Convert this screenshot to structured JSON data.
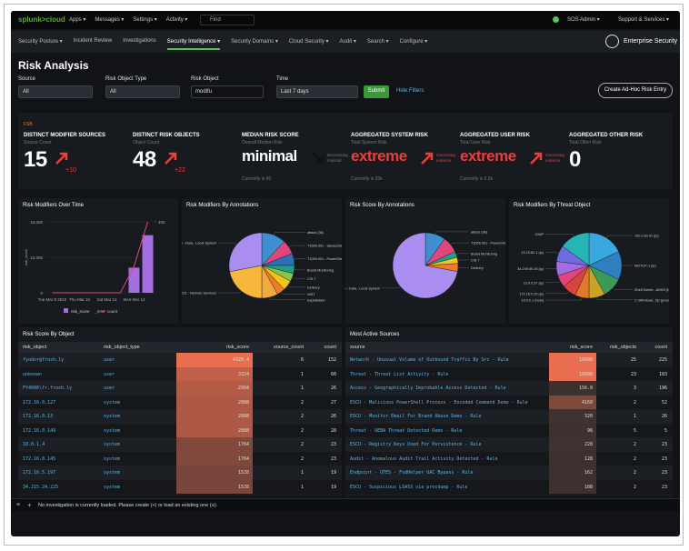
{
  "topbar": {
    "logo": "splunk>cloud",
    "menus": [
      "Apps ▾",
      "Messages ▾",
      "Settings ▾",
      "Activity ▾"
    ],
    "find": "Find",
    "user": "SOS Admin ▾",
    "support": "Support & Services ▾"
  },
  "nav": {
    "items": [
      "Security Posture ▾",
      "Incident Review",
      "Investigations",
      "Security Intelligence ▾",
      "Security Domains ▾",
      "Cloud Security ▾",
      "Audit ▾",
      "Search ▾",
      "Configure ▾"
    ],
    "active": 3,
    "app": "Enterprise Security"
  },
  "page": {
    "title": "Risk Analysis",
    "submit": "Submit",
    "hide_filters": "Hide Filters",
    "create": "Create Ad-Hoc Risk Entry"
  },
  "filters": [
    {
      "label": "Source",
      "value": "All"
    },
    {
      "label": "Risk Object Type",
      "value": "All"
    },
    {
      "label": "Risk Object",
      "value": "modifu"
    },
    {
      "label": "Time",
      "value": "Last 7 days"
    }
  ],
  "kpis": {
    "tag": "FSB",
    "items": [
      {
        "title": "DISTINCT MODIFIER SOURCES",
        "subtitle": "Source Count",
        "value": 15,
        "color": "#ffffff",
        "delta": "+10",
        "arrow": "up",
        "arrow_color": "#e8403a"
      },
      {
        "title": "DISTINCT RISK OBJECTS",
        "subtitle": "Object Count",
        "value": 48,
        "color": "#ffffff",
        "delta": "+22",
        "arrow": "up",
        "arrow_color": "#e8403a"
      },
      {
        "title": "MEDIAN RISK SCORE",
        "subtitle": "Overall Median Risk",
        "value": "minimal",
        "color": "#ffffff",
        "trend": "Decreasing minimal",
        "arrow": "down",
        "arrow_color": "#111111",
        "note": "Currently is 90"
      },
      {
        "title": "AGGREGATED SYSTEM RISK",
        "subtitle": "Total System Risk",
        "value": "extreme",
        "color": "#e8403a",
        "trend": "Increasing extreme",
        "arrow": "up",
        "arrow_color": "#e8403a",
        "note": "Currently is 20k"
      },
      {
        "title": "AGGREGATED USER RISK",
        "subtitle": "Total User Risk",
        "value": "extreme",
        "color": "#e8403a",
        "trend": "Increasing extreme",
        "arrow": "up",
        "arrow_color": "#e8403a",
        "note": "Currently is 6.5k"
      },
      {
        "title": "AGGREGATED OTHER RISK",
        "subtitle": "Total Other Risk",
        "value": 0,
        "color": "#ffffff"
      }
    ]
  },
  "over_time": {
    "title": "Risk Modifiers Over Time",
    "type": "bar",
    "categories": [
      "Tue Mar 8 2022",
      null,
      "Thu Mar 10",
      null,
      "Sat Mar 12",
      null,
      "Mon Mar 14",
      null
    ],
    "series": [
      {
        "name": "risk_score",
        "color": "#a46ee0",
        "values": [
          0,
          0,
          0,
          0,
          0,
          0,
          8500,
          19500
        ]
      },
      {
        "name": "count",
        "color": "#e0457b",
        "axis": "y2",
        "values": [
          0,
          0,
          0,
          0,
          0,
          0,
          150,
          400
        ]
      }
    ],
    "x_label": "_time",
    "y_label": "risk_score",
    "ylim": [
      0,
      24000
    ],
    "yticks": [
      0,
      {
        "value": 12000,
        "label": "12,000"
      },
      {
        "value": 24000,
        "label": "24,000"
      }
    ],
    "y2lim": [
      0,
      400
    ],
    "y2ticks": [
      400
    ]
  },
  "pies": [
    {
      "title": "Risk Modifiers By Annotations",
      "slices": [
        {
          "label": "attack (38)",
          "value": 12,
          "color": "#3e8ed0"
        },
        {
          "label": "T1566.001 - Spearphishing Link",
          "value": 7,
          "color": "#e0457b"
        },
        {
          "label": "T1059.001 - PowerShell",
          "value": 6,
          "color": "#2f6db5"
        },
        {
          "label": "Brand Monitoring",
          "value": 4,
          "color": "#1f9e89"
        },
        {
          "label": "CIS 7",
          "value": 4,
          "color": "#8bc34a"
        },
        {
          "label": "Delivery",
          "value": 5,
          "color": "#f0c419"
        },
        {
          "label": "NIST",
          "value": 4,
          "color": "#ef7b2a"
        },
        {
          "label": "Exploitation",
          "value": 8,
          "color": "#f2a93b"
        },
        {
          "label": "T1021 - Remote Services",
          "value": 22,
          "color": "#f6b73c"
        },
        {
          "label": "T1005 - Data...Local System",
          "value": 28,
          "color": "#a98df0"
        }
      ]
    },
    {
      "title": "Risk Score By Annotations",
      "slices": [
        {
          "label": "attack (38)",
          "value": 10,
          "color": "#3e8ed0"
        },
        {
          "label": "T1059.001 - PowerShell",
          "value": 8,
          "color": "#e0457b"
        },
        {
          "label": "Brand Monitoring",
          "value": 3,
          "color": "#1f9e89"
        },
        {
          "label": "CIS 7",
          "value": 3,
          "color": "#f0c419"
        },
        {
          "label": "Delivery",
          "value": 4,
          "color": "#ef7b2a"
        },
        {
          "label": "T1005 - Data...Local System",
          "value": 72,
          "color": "#a98df0"
        }
      ]
    },
    {
      "title": "Risk Modifiers By Threat Object",
      "slices": [
        {
          "label": "192.0.83.41 (ip)",
          "value": 18,
          "color": "#3aa8e0"
        },
        {
          "label": "MOTCP-1 (ip)",
          "value": 14,
          "color": "#2f7fc1"
        },
        {
          "label": "Shell Delete...ANSS (hash)",
          "value": 10,
          "color": "#3b9a57"
        },
        {
          "label": "C:\\Windows...ftp (process)",
          "value": 8,
          "color": "#c9a227"
        },
        {
          "label": "10.0.0.1 (host)",
          "value": 7,
          "color": "#e07a2a"
        },
        {
          "label": "172.16.0.20 (ip)",
          "value": 7,
          "color": "#d9453d"
        },
        {
          "label": "10.0.0.37 (ip)",
          "value": 6,
          "color": "#e0457b"
        },
        {
          "label": "34.209.65.25 (ip)",
          "value": 7,
          "color": "#a46ee0"
        },
        {
          "label": "10.19.82.1 (ip)",
          "value": 8,
          "color": "#6f6ae0"
        },
        {
          "label": "ICMP",
          "value": 15,
          "color": "#26b5b5"
        }
      ]
    }
  ],
  "risk_by_object": {
    "title": "Risk Score By Object",
    "columns": [
      "risk_object",
      "risk_object_type",
      "risk_score",
      "source_count",
      "count"
    ],
    "rows": [
      [
        "fyodor@frosh.ly",
        "user",
        4320.4,
        6,
        152
      ],
      [
        "unknown",
        "user",
        3324,
        1,
        60
      ],
      [
        "FY4006\\fr.frosh.ly",
        "user",
        2984,
        1,
        26
      ],
      [
        "172.16.0.127",
        "system",
        2888,
        2,
        27
      ],
      [
        "172.16.0.13",
        "system",
        2888,
        2,
        26
      ],
      [
        "172.16.0.149",
        "system",
        2888,
        2,
        28
      ],
      [
        "10.0.1.4",
        "system",
        1764,
        2,
        23
      ],
      [
        "172.16.0.145",
        "system",
        1764,
        2,
        23
      ],
      [
        "172.16.5.197",
        "system",
        1528,
        1,
        19
      ],
      [
        "34.215.24.225",
        "system",
        1528,
        1,
        19
      ]
    ]
  },
  "active_sources": {
    "title": "Most Active Sources",
    "columns": [
      "source",
      "risk_score",
      "risk_objects",
      "count"
    ],
    "rows": [
      [
        "Network - Unusual Volume of Outbound Traffic By Src - Rule",
        10680,
        25,
        225
      ],
      [
        "Threat - Threat List Activity - Rule",
        10608,
        23,
        183
      ],
      [
        "Access - Geographically Improbable Access Detected - Rule",
        156.8,
        3,
        196
      ],
      [
        "ESCU - Malicious PowerShell Process - Encoded Command Demo - Rule",
        4160,
        2,
        52
      ],
      [
        "ESCU - Monitor Email For Brand Abuse Demo - Rule",
        320,
        1,
        26
      ],
      [
        "Threat - UEBA Threat Detected Demo - Rule",
        98,
        5,
        5
      ],
      [
        "ESCU - Registry Keys Used For Persistence - Rule",
        228,
        2,
        23
      ],
      [
        "Audit - Anomalous Audit Trail Activity Detected - Rule",
        128,
        2,
        23
      ],
      [
        "Endpoint - UTES - FodHelper UAC Bypass - Rule",
        162,
        2,
        23
      ],
      [
        "ESCU - Suspicious LSASS via procdump - Rule",
        188,
        2,
        23
      ]
    ]
  },
  "footer": {
    "message": "No investigation is currently loaded. Please create (+) or load an existing one (≡)."
  }
}
